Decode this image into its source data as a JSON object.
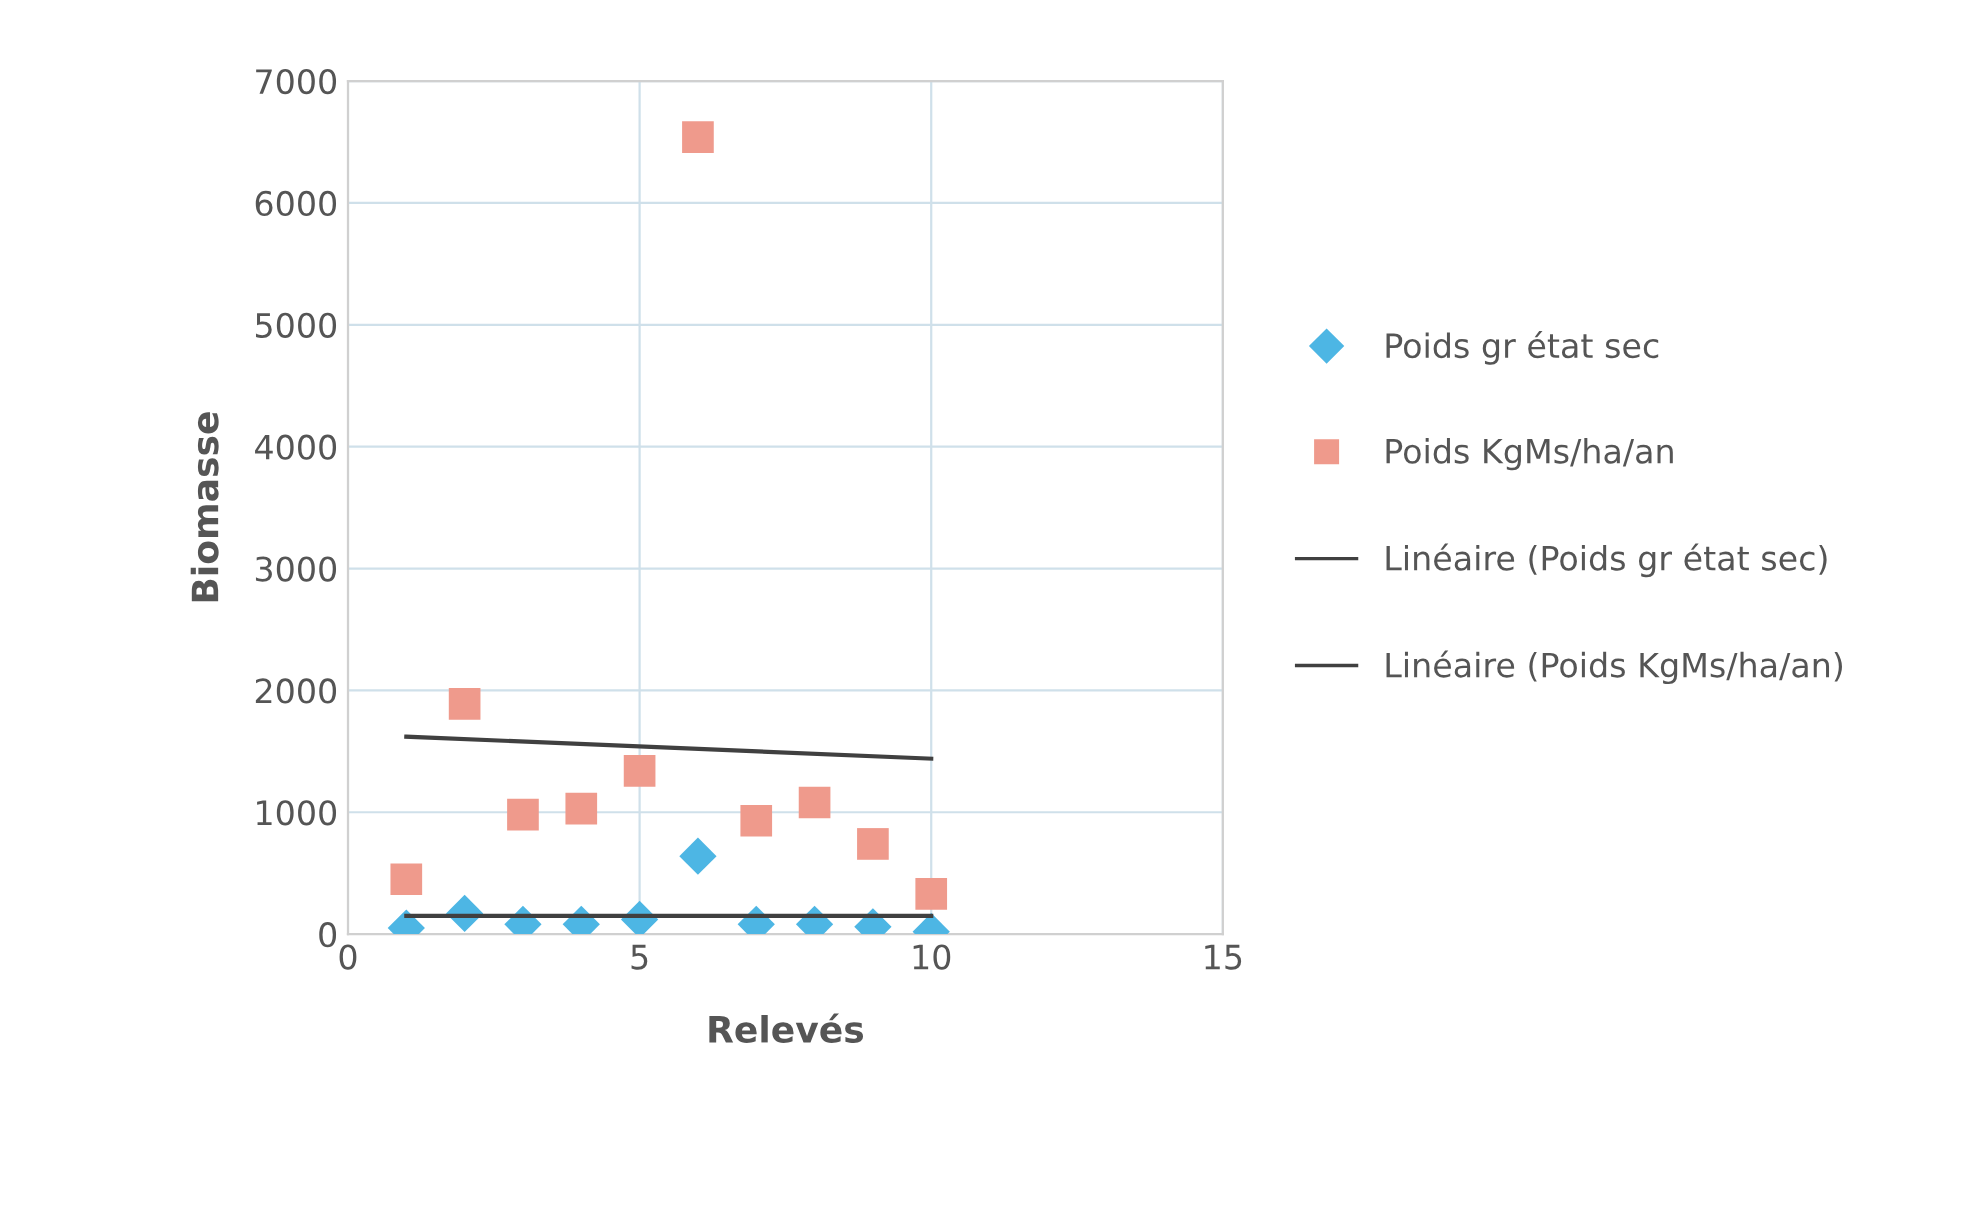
{
  "chart_data": {
    "type": "scatter",
    "xlabel": "Relevés",
    "ylabel": "Biomasse",
    "xlim": [
      0,
      15
    ],
    "xticks": [
      0,
      5,
      10,
      15
    ],
    "ylim": [
      0,
      7000
    ],
    "yticks": [
      0,
      1000,
      2000,
      3000,
      4000,
      5000,
      6000,
      7000
    ],
    "grid": true,
    "legend": "right",
    "series": [
      {
        "name": "Poids gr état sec",
        "marker": "diamond",
        "color": "#4db6e4",
        "x": [
          1,
          2,
          3,
          4,
          5,
          6,
          7,
          8,
          9,
          10
        ],
        "values": [
          50,
          170,
          80,
          80,
          120,
          640,
          80,
          80,
          60,
          20
        ]
      },
      {
        "name": "Poids KgMs/ha/an",
        "marker": "square",
        "color": "#ef9a8c",
        "x": [
          1,
          2,
          3,
          4,
          5,
          6,
          7,
          8,
          9,
          10
        ],
        "values": [
          450,
          1890,
          980,
          1030,
          1340,
          6540,
          930,
          1080,
          740,
          330
        ]
      },
      {
        "name": "Linéaire (Poids gr état sec)",
        "type": "line",
        "marker": "none",
        "line_style": "solid",
        "color": "#404040",
        "x": [
          1,
          10
        ],
        "values": [
          150,
          150
        ]
      },
      {
        "name": "Linéaire (Poids KgMs/ha/an)",
        "type": "line",
        "marker": "none",
        "line_style": "solid",
        "color": "#404040",
        "x": [
          1,
          10
        ],
        "values": [
          1620,
          1440
        ]
      }
    ]
  }
}
